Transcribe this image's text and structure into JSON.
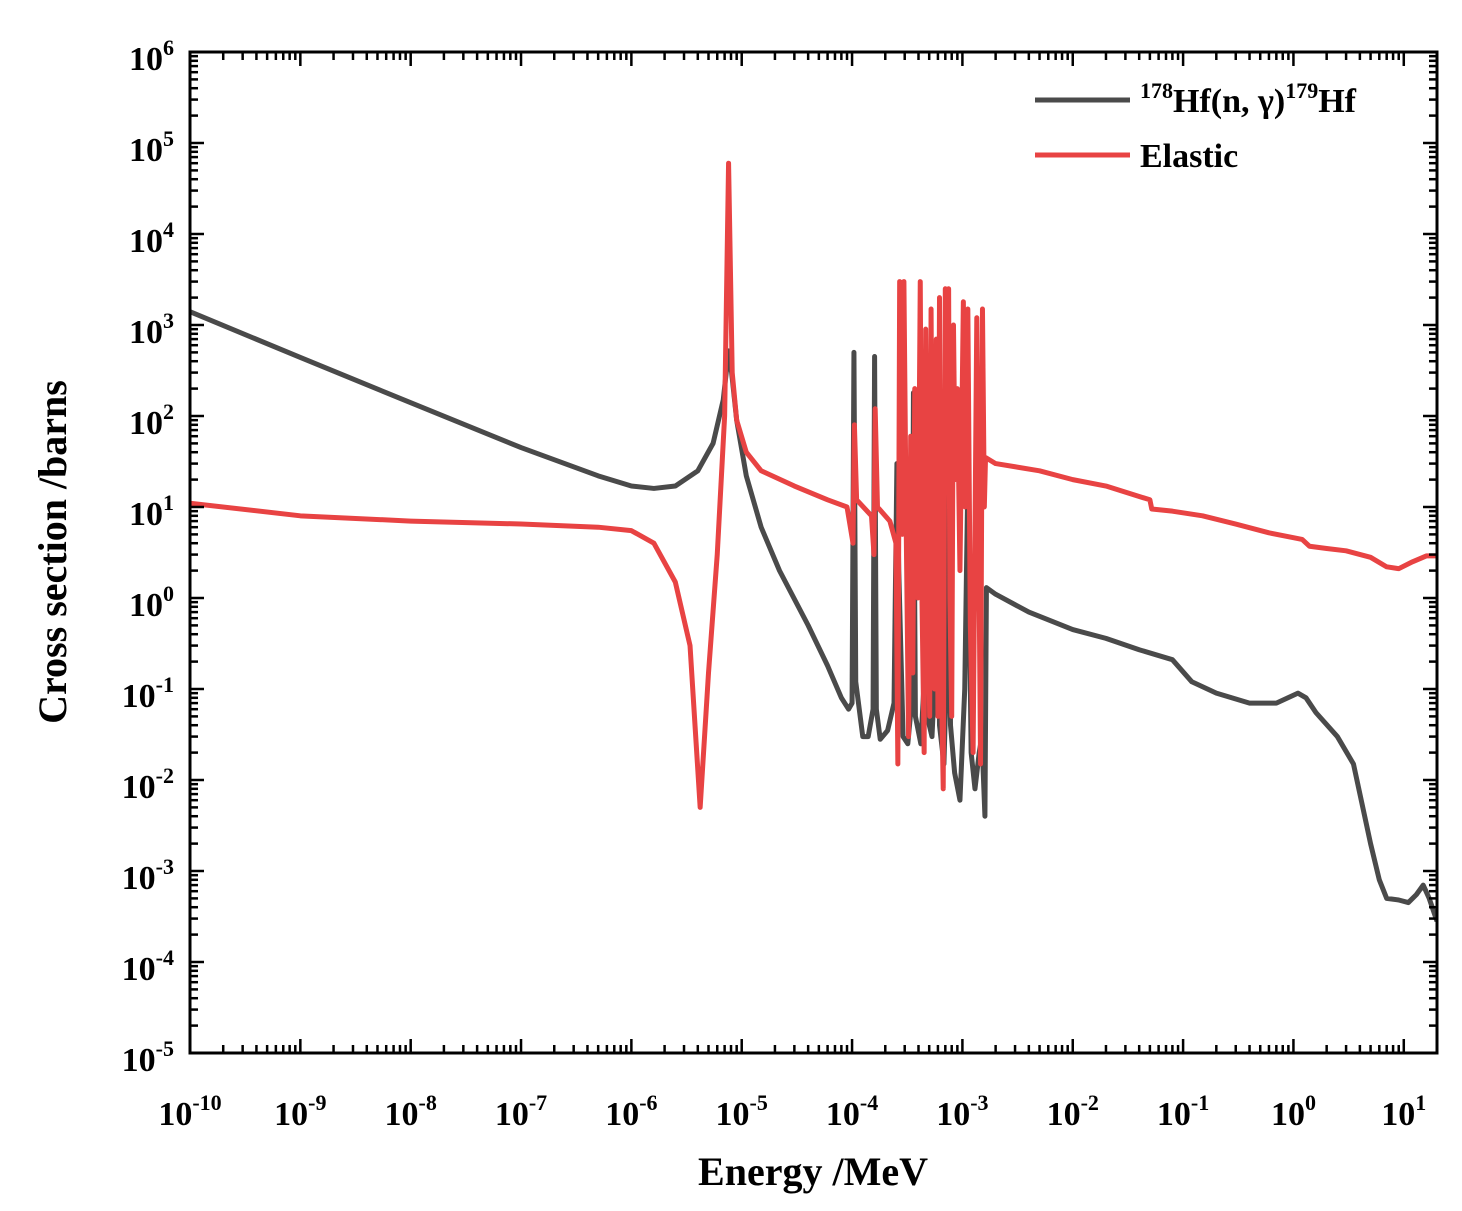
{
  "chart_data": {
    "type": "line",
    "title": "",
    "xlabel": "Energy /MeV",
    "ylabel": "Cross section /barns",
    "xscale": "log",
    "yscale": "log",
    "xlim": [
      1e-10,
      20
    ],
    "ylim": [
      1e-05,
      1000000.0
    ],
    "x_tick_labels": [
      {
        "value": 1e-10,
        "base": "10",
        "exp": "-10"
      },
      {
        "value": 1e-09,
        "base": "10",
        "exp": "-9"
      },
      {
        "value": 1e-08,
        "base": "10",
        "exp": "-8"
      },
      {
        "value": 1e-07,
        "base": "10",
        "exp": "-7"
      },
      {
        "value": 1e-06,
        "base": "10",
        "exp": "-6"
      },
      {
        "value": 1e-05,
        "base": "10",
        "exp": "-5"
      },
      {
        "value": 0.0001,
        "base": "10",
        "exp": "-4"
      },
      {
        "value": 0.001,
        "base": "10",
        "exp": "-3"
      },
      {
        "value": 0.01,
        "base": "10",
        "exp": "-2"
      },
      {
        "value": 0.1,
        "base": "10",
        "exp": "-1"
      },
      {
        "value": 1,
        "base": "10",
        "exp": "0"
      },
      {
        "value": 10,
        "base": "10",
        "exp": "1"
      }
    ],
    "y_tick_labels": [
      {
        "value": 1000000.0,
        "base": "10",
        "exp": "6"
      },
      {
        "value": 100000.0,
        "base": "10",
        "exp": "5"
      },
      {
        "value": 10000.0,
        "base": "10",
        "exp": "4"
      },
      {
        "value": 1000.0,
        "base": "10",
        "exp": "3"
      },
      {
        "value": 100.0,
        "base": "10",
        "exp": "2"
      },
      {
        "value": 10.0,
        "base": "10",
        "exp": "1"
      },
      {
        "value": 1,
        "base": "10",
        "exp": "0"
      },
      {
        "value": 0.1,
        "base": "10",
        "exp": "-1"
      },
      {
        "value": 0.01,
        "base": "10",
        "exp": "-2"
      },
      {
        "value": 0.001,
        "base": "10",
        "exp": "-3"
      },
      {
        "value": 0.0001,
        "base": "10",
        "exp": "-4"
      },
      {
        "value": 1e-05,
        "base": "10",
        "exp": "-5"
      }
    ],
    "legend_position": "top-right",
    "legend": [
      {
        "series": "capture",
        "parts": [
          {
            "t": "178",
            "sup": true
          },
          {
            "t": "Hf(n, γ)",
            "sup": false
          },
          {
            "t": "179",
            "sup": true
          },
          {
            "t": "Hf",
            "sup": false
          }
        ]
      },
      {
        "series": "elastic",
        "parts": [
          {
            "t": "Elastic",
            "sup": false
          }
        ]
      }
    ],
    "series": [
      {
        "name": "capture",
        "label": "178Hf(n, γ)179Hf",
        "color": "#4a4a4a",
        "points": [
          [
            1e-10,
            1400
          ],
          [
            1e-09,
            440
          ],
          [
            1e-08,
            140
          ],
          [
            1e-07,
            45
          ],
          [
            5e-07,
            22
          ],
          [
            1e-06,
            17
          ],
          [
            1.6e-06,
            16
          ],
          [
            2.5e-06,
            17
          ],
          [
            4e-06,
            25
          ],
          [
            5.5e-06,
            50
          ],
          [
            6.8e-06,
            150
          ],
          [
            7.6e-06,
            520
          ],
          [
            8.1e-06,
            300
          ],
          [
            9e-06,
            90
          ],
          [
            1.1e-05,
            22
          ],
          [
            1.5e-05,
            6
          ],
          [
            2.2e-05,
            2
          ],
          [
            4e-05,
            0.5
          ],
          [
            6e-05,
            0.18
          ],
          [
            8e-05,
            0.08
          ],
          [
            9.3e-05,
            0.06
          ],
          [
            0.0001,
            0.07
          ],
          [
            0.000104,
            500
          ],
          [
            0.000108,
            0.12
          ],
          [
            0.000125,
            0.03
          ],
          [
            0.00014,
            0.03
          ],
          [
            0.000155,
            0.06
          ],
          [
            0.00016,
            450
          ],
          [
            0.000166,
            0.06
          ],
          [
            0.00018,
            0.028
          ],
          [
            0.00021,
            0.035
          ],
          [
            0.00024,
            0.07
          ],
          [
            0.000255,
            30
          ],
          [
            0.000265,
            2
          ],
          [
            0.00029,
            0.03
          ],
          [
            0.00032,
            0.025
          ],
          [
            0.00035,
            0.08
          ],
          [
            0.00036,
            180
          ],
          [
            0.000375,
            0.05
          ],
          [
            0.00042,
            0.025
          ],
          [
            0.00045,
            0.12
          ],
          [
            0.00046,
            50
          ],
          [
            0.00048,
            0.05
          ],
          [
            0.00053,
            0.03
          ],
          [
            0.00057,
            0.2
          ],
          [
            0.00059,
            25
          ],
          [
            0.00062,
            0.04
          ],
          [
            0.00068,
            0.015
          ],
          [
            0.00073,
            0.3
          ],
          [
            0.00075,
            40
          ],
          [
            0.00078,
            0.04
          ],
          [
            0.00085,
            0.012
          ],
          [
            0.00095,
            0.006
          ],
          [
            0.00105,
            0.1
          ],
          [
            0.00112,
            20
          ],
          [
            0.0012,
            0.02
          ],
          [
            0.0013,
            0.008
          ],
          [
            0.00142,
            0.02
          ],
          [
            0.0015,
            0.03
          ],
          [
            0.0016,
            0.004
          ],
          [
            0.00165,
            1.3
          ],
          [
            0.002,
            1.1
          ],
          [
            0.004,
            0.7
          ],
          [
            0.01,
            0.45
          ],
          [
            0.02,
            0.36
          ],
          [
            0.04,
            0.27
          ],
          [
            0.08,
            0.21
          ],
          [
            0.12,
            0.12
          ],
          [
            0.2,
            0.09
          ],
          [
            0.4,
            0.07
          ],
          [
            0.7,
            0.07
          ],
          [
            1.1,
            0.09
          ],
          [
            1.3,
            0.08
          ],
          [
            1.6,
            0.055
          ],
          [
            2.5,
            0.03
          ],
          [
            3.5,
            0.015
          ],
          [
            5,
            0.002
          ],
          [
            6,
            0.0008
          ],
          [
            7,
            0.0005
          ],
          [
            9,
            0.00048
          ],
          [
            11,
            0.00045
          ],
          [
            13,
            0.00055
          ],
          [
            15,
            0.0007
          ],
          [
            17,
            0.0005
          ],
          [
            20,
            0.00028
          ]
        ]
      },
      {
        "name": "elastic",
        "label": "Elastic",
        "color": "#e84343",
        "points": [
          [
            1e-10,
            11
          ],
          [
            1e-09,
            8
          ],
          [
            1e-08,
            7
          ],
          [
            1e-07,
            6.5
          ],
          [
            5e-07,
            6
          ],
          [
            1e-06,
            5.5
          ],
          [
            1.6e-06,
            4
          ],
          [
            2.5e-06,
            1.5
          ],
          [
            3.4e-06,
            0.3
          ],
          [
            4.2e-06,
            0.005
          ],
          [
            5e-06,
            0.15
          ],
          [
            6e-06,
            3
          ],
          [
            7e-06,
            100
          ],
          [
            7.6e-06,
            60000
          ],
          [
            8.2e-06,
            300
          ],
          [
            9e-06,
            90
          ],
          [
            1.1e-05,
            40
          ],
          [
            1.5e-05,
            25
          ],
          [
            3e-05,
            17
          ],
          [
            6e-05,
            12
          ],
          [
            9e-05,
            10
          ],
          [
            0.000102,
            4
          ],
          [
            0.000105,
            80
          ],
          [
            0.00011,
            12
          ],
          [
            0.00015,
            8
          ],
          [
            0.000158,
            3
          ],
          [
            0.000162,
            120
          ],
          [
            0.00017,
            10
          ],
          [
            0.00022,
            7
          ],
          [
            0.00025,
            4
          ],
          [
            0.00026,
            0.015
          ],
          [
            0.00027,
            3000
          ],
          [
            0.000285,
            5
          ],
          [
            0.000295,
            3000
          ],
          [
            0.00031,
            5
          ],
          [
            0.000325,
            0.03
          ],
          [
            0.00034,
            60
          ],
          [
            0.000355,
            0.15
          ],
          [
            0.00037,
            200
          ],
          [
            0.000395,
            1
          ],
          [
            0.000415,
            3000
          ],
          [
            0.00043,
            1
          ],
          [
            0.00045,
            0.02
          ],
          [
            0.000465,
            900
          ],
          [
            0.000485,
            2
          ],
          [
            0.000505,
            0.05
          ],
          [
            0.00052,
            1500
          ],
          [
            0.00054,
            0.5
          ],
          [
            0.00056,
            0.1
          ],
          [
            0.00058,
            700
          ],
          [
            0.0006,
            0.05
          ],
          [
            0.00062,
            2000
          ],
          [
            0.00064,
            0.2
          ],
          [
            0.00067,
            0.008
          ],
          [
            0.0007,
            2500
          ],
          [
            0.00072,
            100
          ],
          [
            0.00075,
            2500
          ],
          [
            0.00077,
            1
          ],
          [
            0.0008,
            0.05
          ],
          [
            0.00083,
            1000
          ],
          [
            0.00086,
            20
          ],
          [
            0.0009,
            200
          ],
          [
            0.00095,
            2
          ],
          [
            0.00102,
            1800
          ],
          [
            0.00106,
            10
          ],
          [
            0.00112,
            1500
          ],
          [
            0.00118,
            0.5
          ],
          [
            0.00125,
            0.02
          ],
          [
            0.00135,
            1200
          ],
          [
            0.00142,
            1
          ],
          [
            0.00146,
            0.015
          ],
          [
            0.00152,
            1500
          ],
          [
            0.00158,
            10
          ],
          [
            0.00162,
            35
          ],
          [
            0.002,
            30
          ],
          [
            0.005,
            25
          ],
          [
            0.01,
            20
          ],
          [
            0.02,
            17
          ],
          [
            0.05,
            12
          ],
          [
            0.052,
            9.5
          ],
          [
            0.08,
            9
          ],
          [
            0.15,
            8
          ],
          [
            0.3,
            6.5
          ],
          [
            0.6,
            5.2
          ],
          [
            1,
            4.6
          ],
          [
            1.2,
            4.4
          ],
          [
            1.4,
            3.7
          ],
          [
            2,
            3.5
          ],
          [
            3,
            3.3
          ],
          [
            5,
            2.8
          ],
          [
            7,
            2.2
          ],
          [
            9,
            2.1
          ],
          [
            12,
            2.5
          ],
          [
            16,
            2.9
          ],
          [
            20,
            2.9
          ]
        ]
      }
    ]
  }
}
